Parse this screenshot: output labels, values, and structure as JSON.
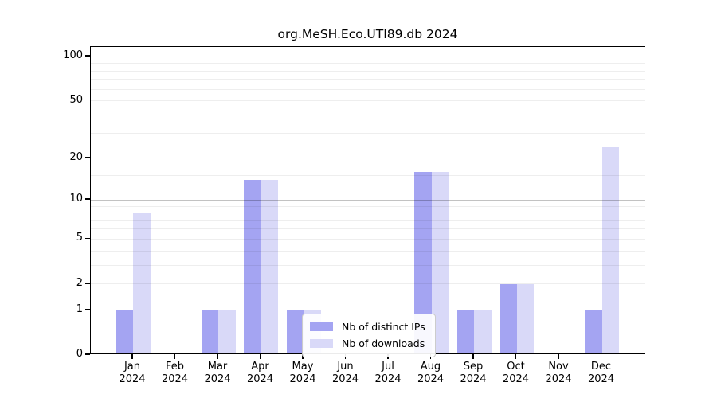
{
  "chart_data": {
    "type": "bar",
    "title": "org.MeSH.Eco.UTI89.db 2024",
    "categories": [
      "Jan",
      "Feb",
      "Mar",
      "Apr",
      "May",
      "Jun",
      "Jul",
      "Aug",
      "Sep",
      "Oct",
      "Nov",
      "Dec"
    ],
    "year_label": "2024",
    "series": [
      {
        "name": "Nb of distinct IPs",
        "color": "#a4a4f2",
        "values": [
          1,
          0,
          1,
          14,
          1,
          0,
          0,
          16,
          1,
          2,
          0,
          1
        ]
      },
      {
        "name": "Nb of downloads",
        "color": "#d9d9f8",
        "values": [
          8,
          0,
          1,
          14,
          1,
          0,
          0,
          16,
          1,
          2,
          0,
          24
        ]
      }
    ],
    "xlabel": "",
    "ylabel": "",
    "yscale": "log1p",
    "ylim": [
      0,
      100
    ],
    "yticks": [
      0,
      1,
      2,
      5,
      10,
      20,
      50,
      100
    ],
    "major_gridlines": [
      1,
      10,
      100
    ],
    "minor_gridlines": [
      2,
      3,
      4,
      5,
      6,
      7,
      8,
      9,
      15,
      20,
      30,
      40,
      50,
      60,
      70,
      80,
      90
    ],
    "grid": "on",
    "legend_position": "lower-center-inside"
  }
}
